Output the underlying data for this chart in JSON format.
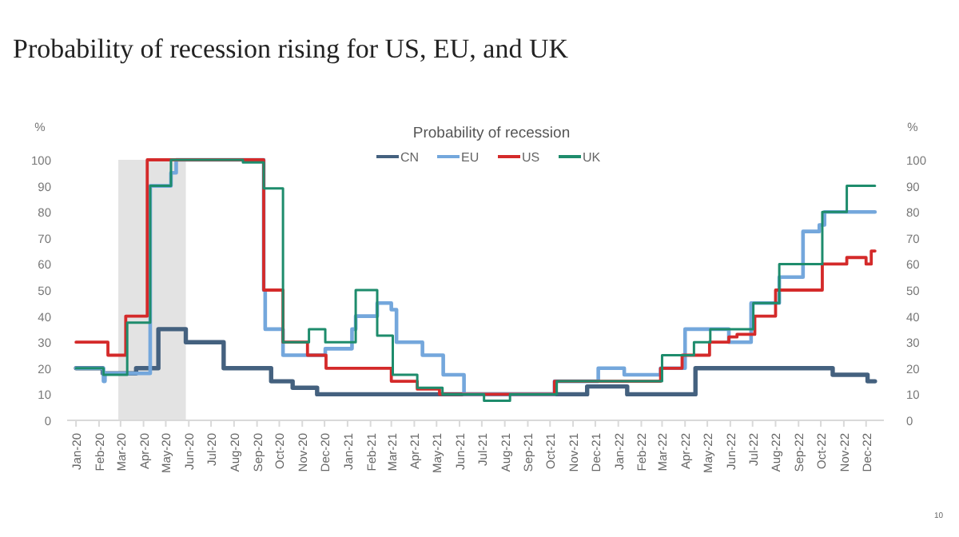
{
  "chart_data": {
    "type": "step",
    "title": "Probability of recession rising for US, EU, and UK",
    "legend_title": "Probability of recession",
    "ylabel": "%",
    "y2label": "%",
    "legend": "top",
    "grid": false,
    "annotations": [
      "10"
    ],
    "xlim": [
      "2019-12-20",
      "2022-12-25"
    ],
    "xticks": [
      {
        "value": "2020-01-01",
        "label": "Jan-20"
      },
      {
        "value": "2020-02-01",
        "label": "Feb-20"
      },
      {
        "value": "2020-03-01",
        "label": "Mar-20"
      },
      {
        "value": "2020-04-01",
        "label": "Apr-20"
      },
      {
        "value": "2020-05-01",
        "label": "May-20"
      },
      {
        "value": "2020-06-01",
        "label": "Jun-20"
      },
      {
        "value": "2020-07-01",
        "label": "Jul-20"
      },
      {
        "value": "2020-08-01",
        "label": "Aug-20"
      },
      {
        "value": "2020-09-01",
        "label": "Sep-20"
      },
      {
        "value": "2020-10-01",
        "label": "Oct-20"
      },
      {
        "value": "2020-11-01",
        "label": "Nov-20"
      },
      {
        "value": "2020-12-01",
        "label": "Dec-20"
      },
      {
        "value": "2021-01-01",
        "label": "Jan-21"
      },
      {
        "value": "2021-02-01",
        "label": "Feb-21"
      },
      {
        "value": "2021-03-01",
        "label": "Mar-21"
      },
      {
        "value": "2021-04-01",
        "label": "Apr-21"
      },
      {
        "value": "2021-05-01",
        "label": "May-21"
      },
      {
        "value": "2021-06-01",
        "label": "Jun-21"
      },
      {
        "value": "2021-07-01",
        "label": "Jul-21"
      },
      {
        "value": "2021-08-01",
        "label": "Aug-21"
      },
      {
        "value": "2021-09-01",
        "label": "Sep-21"
      },
      {
        "value": "2021-10-01",
        "label": "Oct-21"
      },
      {
        "value": "2021-11-01",
        "label": "Nov-21"
      },
      {
        "value": "2021-12-01",
        "label": "Dec-21"
      },
      {
        "value": "2022-01-01",
        "label": "Jan-22"
      },
      {
        "value": "2022-02-01",
        "label": "Feb-22"
      },
      {
        "value": "2022-03-01",
        "label": "Mar-22"
      },
      {
        "value": "2022-04-01",
        "label": "Apr-22"
      },
      {
        "value": "2022-05-01",
        "label": "May-22"
      },
      {
        "value": "2022-06-01",
        "label": "Jun-22"
      },
      {
        "value": "2022-07-01",
        "label": "Jul-22"
      },
      {
        "value": "2022-08-01",
        "label": "Aug-22"
      },
      {
        "value": "2022-09-01",
        "label": "Sep-22"
      },
      {
        "value": "2022-10-01",
        "label": "Oct-22"
      },
      {
        "value": "2022-11-01",
        "label": "Nov-22"
      },
      {
        "value": "2022-12-01",
        "label": "Dec-22"
      }
    ],
    "ylim": [
      0,
      100
    ],
    "yticks": [
      0,
      10,
      20,
      30,
      40,
      50,
      60,
      70,
      80,
      90,
      100
    ],
    "y2lim": [
      0,
      100
    ],
    "y2ticks": [
      0,
      10,
      20,
      30,
      40,
      50,
      60,
      70,
      80,
      90,
      100
    ],
    "bands": [
      {
        "axis": "x",
        "from": "2020-02-27",
        "to": "2020-05-28",
        "color": "#e3e3e3"
      }
    ],
    "series": [
      {
        "name": "CN",
        "color": "#44617f",
        "x": [
          "2020-01-01",
          "2020-02-06",
          "2020-03-22",
          "2020-04-21",
          "2020-05-28",
          "2020-07-18",
          "2020-09-20",
          "2020-10-19",
          "2020-11-21",
          "2021-11-20",
          "2022-01-13",
          "2022-04-15",
          "2022-10-17",
          "2022-12-03",
          "2022-12-13"
        ],
        "values": [
          20,
          18,
          20,
          35,
          30,
          20,
          15,
          12.5,
          10,
          13,
          10,
          20,
          17.5,
          15,
          15
        ]
      },
      {
        "name": "EU",
        "color": "#74a7dc",
        "x": [
          "2020-01-01",
          "2020-02-07",
          "2020-02-09",
          "2020-04-10",
          "2020-05-08",
          "2020-05-15",
          "2020-09-10",
          "2020-09-12",
          "2020-10-06",
          "2020-12-02",
          "2021-01-07",
          "2021-01-12",
          "2021-02-10",
          "2021-03-01",
          "2021-03-08",
          "2021-04-12",
          "2021-05-10",
          "2021-06-07",
          "2021-10-07",
          "2021-12-05",
          "2022-01-09",
          "2022-02-27",
          "2022-04-01",
          "2022-05-30",
          "2022-06-29",
          "2022-08-06",
          "2022-09-07",
          "2022-09-29",
          "2022-10-06",
          "2022-12-13"
        ],
        "values": [
          20,
          15,
          18,
          90,
          95,
          100,
          50,
          35,
          25,
          27.5,
          35,
          40,
          45,
          42.5,
          30,
          25,
          17.5,
          10,
          15,
          20,
          17.5,
          20,
          35,
          30,
          45,
          55,
          72.5,
          75,
          80,
          80
        ]
      },
      {
        "name": "US",
        "color": "#d42a2a",
        "x": [
          "2020-01-01",
          "2020-02-13",
          "2020-03-08",
          "2020-04-06",
          "2020-09-10",
          "2020-10-06",
          "2020-11-08",
          "2020-12-03",
          "2021-03-01",
          "2021-04-05",
          "2021-05-05",
          "2021-10-07",
          "2022-02-27",
          "2022-03-28",
          "2022-05-04",
          "2022-05-30",
          "2022-06-10",
          "2022-07-04",
          "2022-08-01",
          "2022-10-03",
          "2022-11-05",
          "2022-12-01",
          "2022-12-08",
          "2022-12-13"
        ],
        "values": [
          30,
          25,
          40,
          100,
          50,
          30,
          25,
          20,
          15,
          12,
          10,
          15,
          20,
          25,
          30,
          32,
          33,
          40,
          50,
          60,
          62.5,
          60,
          65,
          65
        ]
      },
      {
        "name": "UK",
        "color": "#1e8c6c",
        "x": [
          "2020-01-01",
          "2020-02-07",
          "2020-03-10",
          "2020-04-10",
          "2020-05-08",
          "2020-08-13",
          "2020-09-10",
          "2020-10-06",
          "2020-11-10",
          "2020-12-02",
          "2021-01-12",
          "2021-02-10",
          "2021-03-03",
          "2021-04-05",
          "2021-05-09",
          "2021-07-04",
          "2021-08-08",
          "2021-10-10",
          "2022-03-01",
          "2022-04-13",
          "2022-05-05",
          "2022-07-02",
          "2022-08-06",
          "2022-10-03",
          "2022-11-05",
          "2022-12-13"
        ],
        "values": [
          20,
          17.5,
          37.5,
          90,
          100,
          99,
          89,
          30,
          35,
          30,
          50,
          32.5,
          17.5,
          12.5,
          10,
          7.5,
          10,
          15,
          25,
          30,
          35,
          45,
          60,
          80,
          90,
          90
        ]
      }
    ]
  }
}
